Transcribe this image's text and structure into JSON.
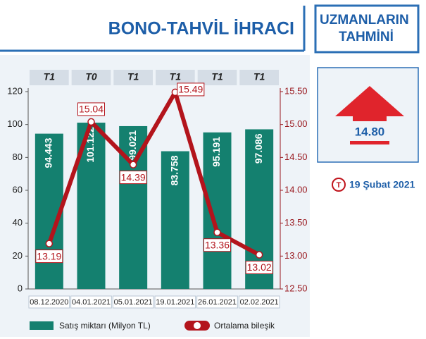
{
  "chart_data": {
    "type": "bar",
    "title": "BONO-TAHVİL İHRACI",
    "categories": [
      "08.12.2020",
      "04.01.2021",
      "05.01.2021",
      "19.01.2021",
      "26.01.2021",
      "02.02.2021"
    ],
    "periods": [
      "T1",
      "T0",
      "T1",
      "T1",
      "T1",
      "T1"
    ],
    "series": [
      {
        "name": "Satış miktarı (Milyon TL)",
        "type": "bar",
        "color": "#14806f",
        "values": [
          94.443,
          101.122,
          99.021,
          83.758,
          95.191,
          97.086
        ]
      },
      {
        "name": "Ortalama bileşik",
        "type": "line",
        "axis": "y2",
        "color": "#b3141c",
        "values": [
          13.19,
          15.04,
          14.39,
          15.49,
          13.36,
          13.02
        ]
      }
    ],
    "ylim": [
      0,
      120
    ],
    "yticks": [
      0,
      20,
      40,
      60,
      80,
      100,
      120
    ],
    "y2lim": [
      12.5,
      15.5
    ],
    "y2ticks": [
      {
        "value": 12.5,
        "label": "12.50"
      },
      {
        "value": 13,
        "label": "13.00"
      },
      {
        "value": 13.5,
        "label": "13.50"
      },
      {
        "value": 14,
        "label": "14.00"
      },
      {
        "value": 14.5,
        "label": "14.50"
      },
      {
        "value": 15,
        "label": "15.00"
      },
      {
        "value": 15.5,
        "label": "15.50"
      }
    ]
  },
  "forecast": {
    "title": "UZMANLARIN TAHMİNİ",
    "value": "14.80",
    "date": "19 Şubat 2021"
  }
}
